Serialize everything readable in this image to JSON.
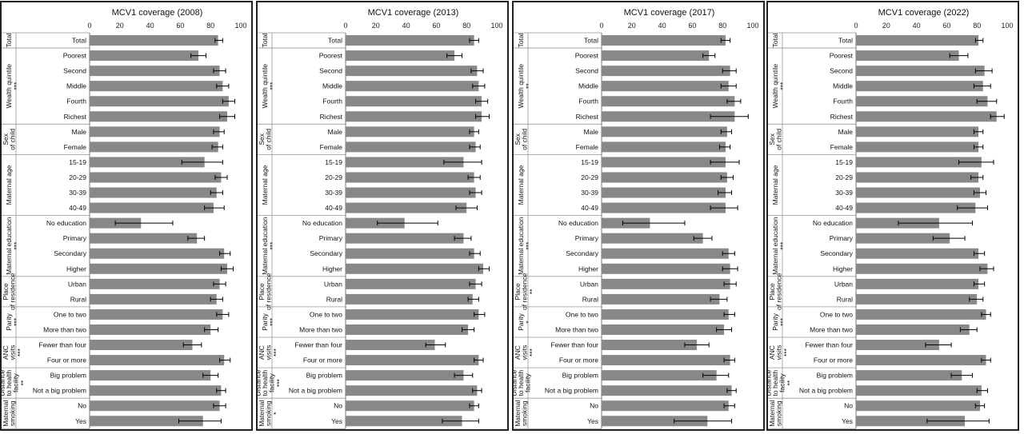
{
  "chart_data": {
    "type": "bar",
    "orientation": "horizontal",
    "xlim": [
      0,
      100
    ],
    "xticks": [
      0,
      20,
      40,
      60,
      80,
      100
    ],
    "bar_color": "#888888",
    "groups": [
      {
        "name": "Total",
        "rows": [
          "Total"
        ]
      },
      {
        "name": "Wealth quintile",
        "rows": [
          "Poorest",
          "Second",
          "Middle",
          "Fourth",
          "Richest"
        ]
      },
      {
        "name": "Sex of child",
        "rows": [
          "Male",
          "Female"
        ]
      },
      {
        "name": "Maternal age",
        "rows": [
          "15-19",
          "20-29",
          "30-39",
          "40-49"
        ]
      },
      {
        "name": "Maternal education",
        "rows": [
          "No education",
          "Primary",
          "Secondary",
          "Higher"
        ]
      },
      {
        "name": "Place of residence",
        "rows": [
          "Urban",
          "Rural"
        ]
      },
      {
        "name": "Parity",
        "rows": [
          "One to two",
          "More than two"
        ]
      },
      {
        "name": "ANC visits",
        "rows": [
          "Fewer than four",
          "Four or more"
        ]
      },
      {
        "name": "Distance to health facility",
        "rows": [
          "Big problem",
          "Not a big problem"
        ]
      },
      {
        "name": "Maternal smoking",
        "rows": [
          "No",
          "Yes"
        ]
      }
    ],
    "charts": [
      {
        "title": "MCV1 coverage (2008)",
        "stars": [
          "",
          "***",
          "",
          "",
          "***",
          "",
          "***",
          "***",
          "**",
          ""
        ],
        "values": [
          85,
          72,
          86,
          88,
          92,
          91,
          86,
          85,
          76,
          87,
          84,
          82,
          34,
          71,
          89,
          91,
          86,
          84,
          88,
          80,
          68,
          89,
          80,
          87,
          86,
          75
        ],
        "ci": [
          [
            83,
            88
          ],
          [
            67,
            77
          ],
          [
            82,
            90
          ],
          [
            84,
            92
          ],
          [
            88,
            96
          ],
          [
            86,
            96
          ],
          [
            82,
            89
          ],
          [
            81,
            88
          ],
          [
            61,
            88
          ],
          [
            83,
            91
          ],
          [
            80,
            88
          ],
          [
            76,
            89
          ],
          [
            17,
            55
          ],
          [
            65,
            76
          ],
          [
            86,
            93
          ],
          [
            87,
            95
          ],
          [
            82,
            90
          ],
          [
            80,
            88
          ],
          [
            84,
            92
          ],
          [
            76,
            85
          ],
          [
            62,
            74
          ],
          [
            86,
            93
          ],
          [
            75,
            85
          ],
          [
            84,
            90
          ],
          [
            82,
            90
          ],
          [
            59,
            87
          ]
        ]
      },
      {
        "title": "MCV1 coverage (2013)",
        "stars": [
          "",
          "***",
          "",
          "",
          "***",
          "",
          "***",
          "***",
          "***",
          "*"
        ],
        "values": [
          85,
          72,
          87,
          88,
          90,
          90,
          85,
          86,
          78,
          85,
          86,
          80,
          39,
          78,
          85,
          91,
          86,
          84,
          88,
          81,
          59,
          88,
          78,
          87,
          85,
          77
        ],
        "ci": [
          [
            82,
            88
          ],
          [
            67,
            77
          ],
          [
            83,
            91
          ],
          [
            84,
            92
          ],
          [
            86,
            94
          ],
          [
            86,
            95
          ],
          [
            82,
            88
          ],
          [
            82,
            89
          ],
          [
            65,
            90
          ],
          [
            81,
            89
          ],
          [
            82,
            90
          ],
          [
            73,
            87
          ],
          [
            21,
            61
          ],
          [
            72,
            83
          ],
          [
            82,
            89
          ],
          [
            88,
            95
          ],
          [
            82,
            90
          ],
          [
            81,
            88
          ],
          [
            85,
            92
          ],
          [
            77,
            85
          ],
          [
            53,
            66
          ],
          [
            85,
            91
          ],
          [
            72,
            84
          ],
          [
            84,
            90
          ],
          [
            82,
            88
          ],
          [
            64,
            88
          ]
        ]
      },
      {
        "title": "MCV1 coverage (2017)",
        "stars": [
          "",
          "**",
          "",
          "",
          "***",
          "**",
          "*",
          "***",
          "",
          ""
        ],
        "values": [
          82,
          71,
          85,
          84,
          88,
          88,
          83,
          82,
          82,
          83,
          82,
          82,
          32,
          67,
          84,
          85,
          85,
          78,
          84,
          81,
          63,
          85,
          76,
          86,
          84,
          70
        ],
        "ci": [
          [
            79,
            85
          ],
          [
            67,
            75
          ],
          [
            80,
            89
          ],
          [
            79,
            89
          ],
          [
            83,
            92
          ],
          [
            72,
            97
          ],
          [
            79,
            86
          ],
          [
            78,
            85
          ],
          [
            72,
            91
          ],
          [
            79,
            87
          ],
          [
            77,
            86
          ],
          [
            72,
            90
          ],
          [
            14,
            55
          ],
          [
            61,
            73
          ],
          [
            80,
            88
          ],
          [
            80,
            90
          ],
          [
            81,
            89
          ],
          [
            72,
            83
          ],
          [
            81,
            88
          ],
          [
            76,
            86
          ],
          [
            55,
            71
          ],
          [
            81,
            88
          ],
          [
            67,
            84
          ],
          [
            83,
            89
          ],
          [
            81,
            88
          ],
          [
            48,
            86
          ]
        ]
      },
      {
        "title": "MCV1 coverage (2022)",
        "stars": [
          "",
          "***",
          "",
          "",
          "***",
          "",
          "***",
          "***",
          "**",
          ""
        ],
        "values": [
          81,
          68,
          85,
          84,
          87,
          93,
          81,
          81,
          83,
          81,
          82,
          79,
          55,
          62,
          81,
          87,
          81,
          80,
          86,
          75,
          55,
          86,
          70,
          83,
          82,
          72
        ],
        "ci": [
          [
            79,
            84
          ],
          [
            62,
            74
          ],
          [
            79,
            90
          ],
          [
            78,
            89
          ],
          [
            80,
            93
          ],
          [
            89,
            98
          ],
          [
            78,
            84
          ],
          [
            78,
            84
          ],
          [
            68,
            91
          ],
          [
            76,
            84
          ],
          [
            78,
            86
          ],
          [
            67,
            87
          ],
          [
            28,
            77
          ],
          [
            51,
            72
          ],
          [
            78,
            85
          ],
          [
            82,
            91
          ],
          [
            78,
            85
          ],
          [
            75,
            84
          ],
          [
            83,
            89
          ],
          [
            69,
            80
          ],
          [
            46,
            63
          ],
          [
            83,
            89
          ],
          [
            63,
            77
          ],
          [
            80,
            87
          ],
          [
            79,
            85
          ],
          [
            47,
            88
          ]
        ]
      }
    ]
  }
}
